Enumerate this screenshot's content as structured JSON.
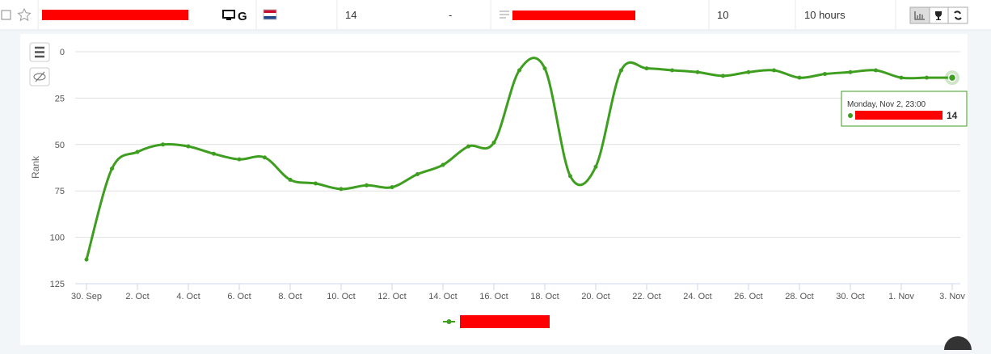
{
  "row": {
    "cells": [
      "14",
      "-",
      "10",
      "10 hours"
    ]
  },
  "chart_data": {
    "type": "line",
    "y_label": "Rank",
    "categories": [
      "30. Sep",
      null,
      "2. Oct",
      null,
      "4. Oct",
      null,
      "6. Oct",
      null,
      "8. Oct",
      null,
      "10. Oct",
      null,
      "12. Oct",
      null,
      "14. Oct",
      null,
      "16. Oct",
      null,
      "18. Oct",
      null,
      "20. Oct",
      null,
      "22. Oct",
      null,
      "24. Oct",
      null,
      "26. Oct",
      null,
      "28. Oct",
      null,
      "30. Oct",
      null,
      "1. Nov",
      null,
      "3. Nov"
    ],
    "series": [
      {
        "color": "#3e9e1f",
        "values": [
          112,
          63,
          54,
          50,
          51,
          55,
          58,
          57,
          69,
          71,
          74,
          72,
          73,
          66,
          61,
          51,
          49,
          10,
          9,
          67,
          62,
          10,
          9,
          10,
          11,
          13,
          11,
          10,
          14,
          12,
          11,
          10,
          14,
          14,
          14
        ]
      }
    ],
    "ylim": [
      0,
      125
    ],
    "y_reversed": true,
    "yticks": [
      0,
      25,
      50,
      75,
      100,
      125
    ],
    "grid": true,
    "tooltip": {
      "title": "Monday, Nov 2, 23:00",
      "value": 14
    }
  }
}
